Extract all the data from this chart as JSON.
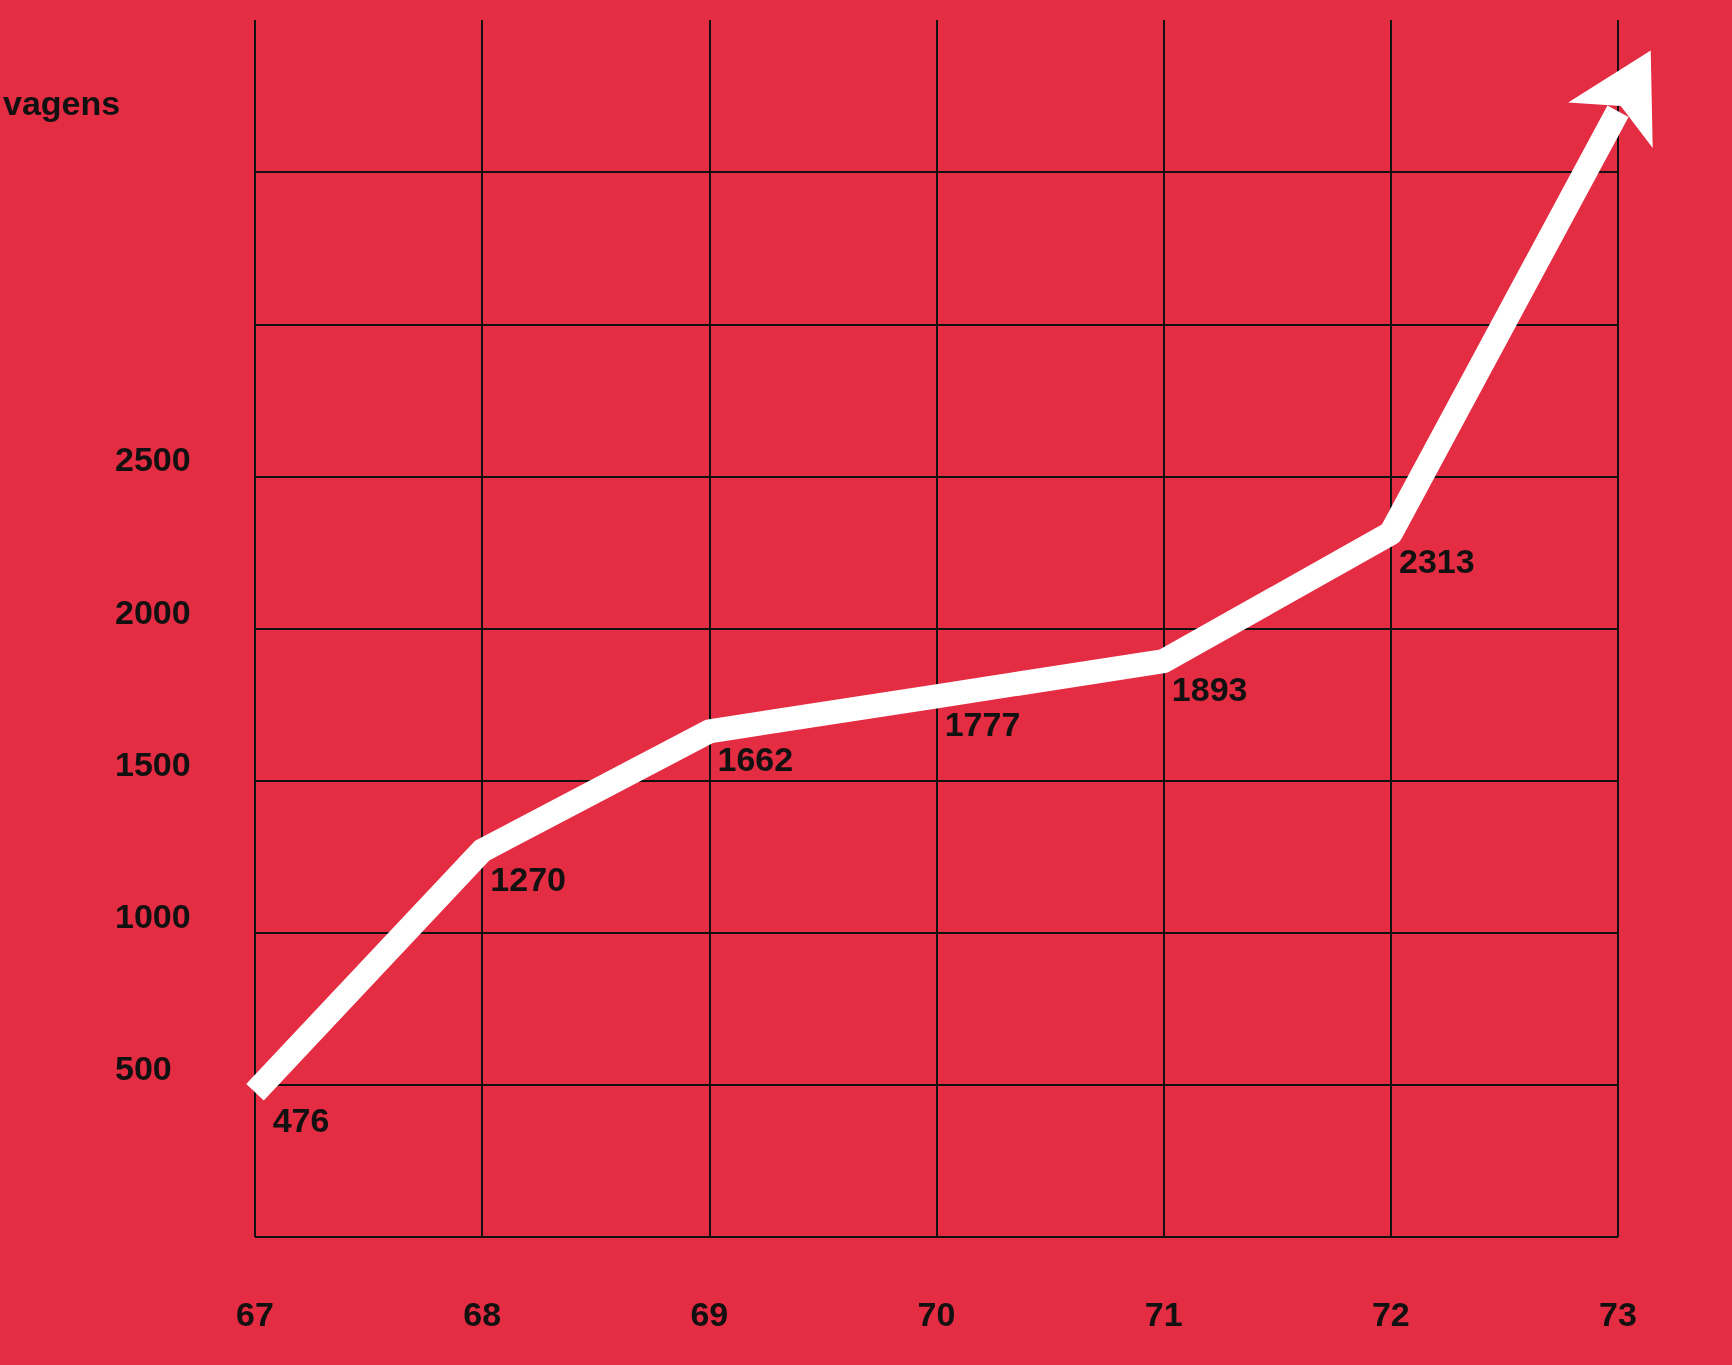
{
  "chart_data": {
    "type": "line",
    "ylabel": "vagens",
    "categories": [
      "67",
      "68",
      "69",
      "70",
      "71",
      "72",
      "73"
    ],
    "series": [
      {
        "color": "#ffffff",
        "values": [
          476,
          1270,
          1662,
          1777,
          1893,
          2313,
          3700
        ],
        "value_labels": [
          "476",
          "1270",
          "1662",
          "1777",
          "1893",
          "2313",
          null
        ]
      }
    ],
    "ylim": [
      0,
      4000
    ],
    "yticks": [
      {
        "value": 0,
        "label": null
      },
      500,
      1000,
      1500,
      2000,
      2500,
      {
        "value": 3000,
        "label": null
      },
      {
        "value": 3500,
        "label": null
      }
    ],
    "grid": true,
    "marker": "none",
    "line_style": "solid"
  }
}
